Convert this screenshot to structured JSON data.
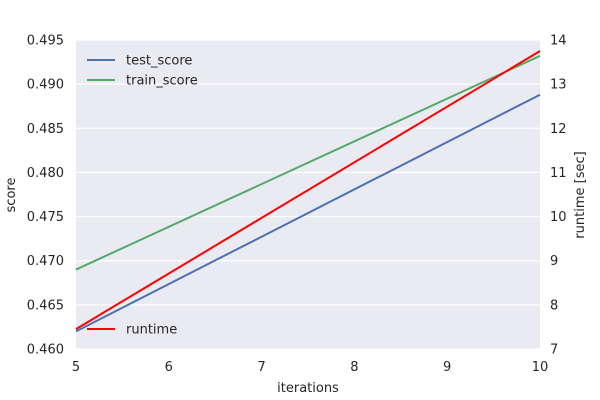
{
  "chart_data": {
    "type": "line",
    "xlabel": "iterations",
    "ylabel": "score",
    "y2label": "runtime [sec]",
    "xlim": [
      5,
      10
    ],
    "ylim": [
      0.46,
      0.495
    ],
    "y2lim": [
      7,
      14
    ],
    "xticks": [
      "5",
      "6",
      "7",
      "8",
      "9",
      "10"
    ],
    "yticks": [
      "0.460",
      "0.465",
      "0.470",
      "0.475",
      "0.480",
      "0.485",
      "0.490",
      "0.495"
    ],
    "y2ticks": [
      "7",
      "8",
      "9",
      "10",
      "11",
      "12",
      "13",
      "14"
    ],
    "grid": true,
    "series": [
      {
        "name": "test_score",
        "axis": "left",
        "color": "#4c72b0",
        "x": [
          5,
          10
        ],
        "y": [
          0.462,
          0.4888
        ]
      },
      {
        "name": "train_score",
        "axis": "left",
        "color": "#55a868",
        "x": [
          5,
          10
        ],
        "y": [
          0.469,
          0.4932
        ]
      },
      {
        "name": "runtime",
        "axis": "right",
        "color": "#ff0000",
        "x": [
          5,
          10
        ],
        "y": [
          7.45,
          13.75
        ]
      }
    ],
    "legends": [
      {
        "placement": "upper-left",
        "entries": [
          "test_score",
          "train_score"
        ]
      },
      {
        "placement": "lower-left",
        "entries": [
          "runtime"
        ]
      }
    ]
  }
}
